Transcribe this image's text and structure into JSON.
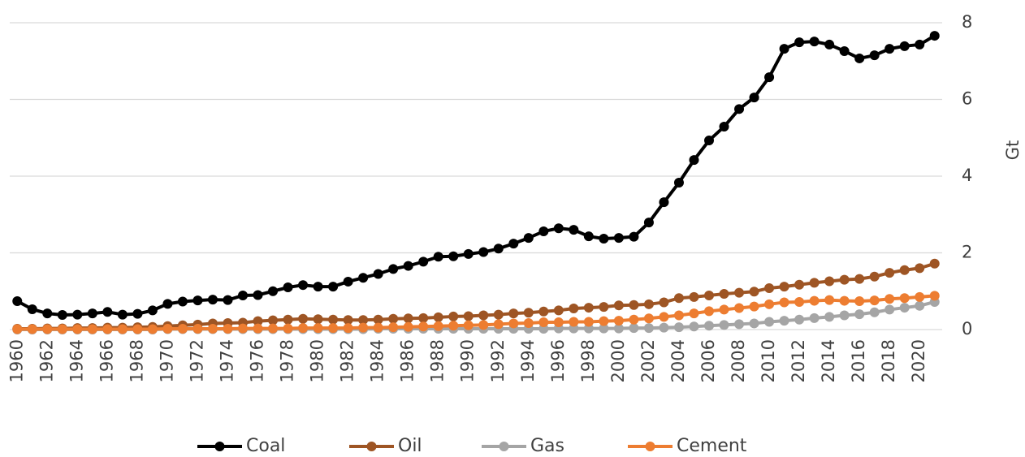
{
  "chart_data": {
    "type": "line",
    "y_axis_label": "Gt",
    "x": [
      1960,
      1961,
      1962,
      1963,
      1964,
      1965,
      1966,
      1967,
      1968,
      1969,
      1970,
      1971,
      1972,
      1973,
      1974,
      1975,
      1976,
      1977,
      1978,
      1979,
      1980,
      1981,
      1982,
      1983,
      1984,
      1985,
      1986,
      1987,
      1988,
      1989,
      1990,
      1991,
      1992,
      1993,
      1994,
      1995,
      1996,
      1997,
      1998,
      1999,
      2000,
      2001,
      2002,
      2003,
      2004,
      2005,
      2006,
      2007,
      2008,
      2009,
      2010,
      2011,
      2012,
      2013,
      2014,
      2015,
      2016,
      2017,
      2018,
      2019,
      2020,
      2021
    ],
    "xticks": [
      1960,
      1962,
      1964,
      1966,
      1968,
      1970,
      1972,
      1974,
      1976,
      1978,
      1980,
      1982,
      1984,
      1986,
      1988,
      1990,
      1992,
      1994,
      1996,
      1998,
      2000,
      2002,
      2004,
      2006,
      2008,
      2010,
      2012,
      2014,
      2016,
      2018,
      2020
    ],
    "ylim": [
      0,
      8
    ],
    "yticks": [
      0,
      2,
      4,
      6,
      8
    ],
    "grid": true,
    "legend": "bottom",
    "series": [
      {
        "name": "Coal",
        "color": "#000000",
        "values": [
          0.74,
          0.53,
          0.42,
          0.38,
          0.39,
          0.42,
          0.46,
          0.39,
          0.41,
          0.5,
          0.67,
          0.73,
          0.76,
          0.78,
          0.77,
          0.89,
          0.9,
          1.0,
          1.1,
          1.16,
          1.12,
          1.12,
          1.25,
          1.35,
          1.45,
          1.58,
          1.66,
          1.77,
          1.9,
          1.91,
          1.97,
          2.02,
          2.11,
          2.24,
          2.39,
          2.56,
          2.64,
          2.6,
          2.43,
          2.37,
          2.39,
          2.42,
          2.79,
          3.32,
          3.83,
          4.42,
          4.93,
          5.29,
          5.75,
          6.05,
          6.58,
          7.32,
          7.49,
          7.51,
          7.43,
          7.26,
          7.07,
          7.15,
          7.32,
          7.39,
          7.43,
          7.66
        ]
      },
      {
        "name": "Oil",
        "color": "#9e5524",
        "values": [
          0.02,
          0.02,
          0.03,
          0.03,
          0.04,
          0.04,
          0.05,
          0.05,
          0.06,
          0.07,
          0.09,
          0.11,
          0.13,
          0.16,
          0.17,
          0.18,
          0.22,
          0.24,
          0.26,
          0.28,
          0.27,
          0.26,
          0.25,
          0.25,
          0.26,
          0.28,
          0.29,
          0.3,
          0.32,
          0.34,
          0.35,
          0.37,
          0.39,
          0.42,
          0.44,
          0.47,
          0.5,
          0.55,
          0.57,
          0.59,
          0.63,
          0.64,
          0.66,
          0.71,
          0.82,
          0.85,
          0.89,
          0.93,
          0.96,
          0.99,
          1.08,
          1.12,
          1.17,
          1.22,
          1.26,
          1.3,
          1.32,
          1.38,
          1.48,
          1.55,
          1.6,
          1.72
        ]
      },
      {
        "name": "Gas",
        "color": "#a5a5a5",
        "values": [
          0,
          0,
          0,
          0,
          0,
          0,
          0,
          0,
          0,
          0,
          0.01,
          0.01,
          0.01,
          0.01,
          0.01,
          0.01,
          0.01,
          0.01,
          0.01,
          0.01,
          0.01,
          0.01,
          0.01,
          0.01,
          0.02,
          0.02,
          0.02,
          0.02,
          0.02,
          0.02,
          0.02,
          0.02,
          0.02,
          0.02,
          0.02,
          0.02,
          0.03,
          0.03,
          0.03,
          0.03,
          0.03,
          0.04,
          0.04,
          0.05,
          0.06,
          0.08,
          0.1,
          0.12,
          0.14,
          0.16,
          0.2,
          0.23,
          0.26,
          0.3,
          0.33,
          0.37,
          0.4,
          0.45,
          0.52,
          0.57,
          0.62,
          0.72
        ]
      },
      {
        "name": "Cement",
        "color": "#ed7d31",
        "values": [
          0.01,
          0.01,
          0.01,
          0.01,
          0.01,
          0.01,
          0.01,
          0.01,
          0.01,
          0.01,
          0.02,
          0.02,
          0.02,
          0.02,
          0.02,
          0.03,
          0.03,
          0.03,
          0.03,
          0.04,
          0.04,
          0.04,
          0.04,
          0.05,
          0.05,
          0.06,
          0.07,
          0.08,
          0.09,
          0.1,
          0.11,
          0.12,
          0.14,
          0.16,
          0.17,
          0.19,
          0.19,
          0.2,
          0.2,
          0.22,
          0.23,
          0.26,
          0.29,
          0.33,
          0.37,
          0.42,
          0.48,
          0.52,
          0.56,
          0.6,
          0.66,
          0.71,
          0.72,
          0.75,
          0.77,
          0.75,
          0.74,
          0.76,
          0.8,
          0.82,
          0.85,
          0.88
        ]
      }
    ]
  }
}
